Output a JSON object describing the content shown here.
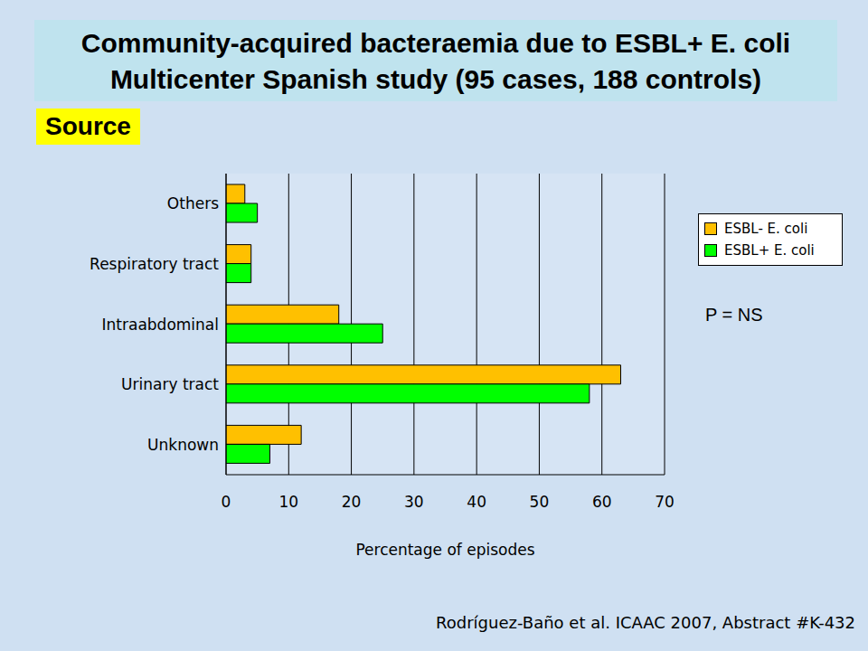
{
  "chart_data": {
    "type": "bar",
    "orientation": "horizontal",
    "title": "Community-acquired bacteraemia due to ESBL+ E. coli",
    "subtitle": "Multicenter Spanish study (95 cases, 188 controls)",
    "annotations": [
      "Source",
      "P = NS",
      "Rodríguez-Baño et al. ICAAC 2007, Abstract #K-432"
    ],
    "xlabel": "Percentage of episodes",
    "categories": [
      "Others",
      "Respiratory tract",
      "Intraabdominal",
      "Urinary tract",
      "Unknown"
    ],
    "series": [
      {
        "name": "ESBL- E. coli",
        "color": "#ffc000",
        "values": [
          3,
          4,
          18,
          63,
          12
        ]
      },
      {
        "name": "ESBL+ E. coli",
        "color": "#00ff00",
        "values": [
          5,
          4,
          25,
          58,
          7
        ]
      }
    ],
    "xlim": [
      0,
      70
    ],
    "xticks": [
      0,
      10,
      20,
      30,
      40,
      50,
      60,
      70
    ],
    "grid": true,
    "legend": "right"
  }
}
